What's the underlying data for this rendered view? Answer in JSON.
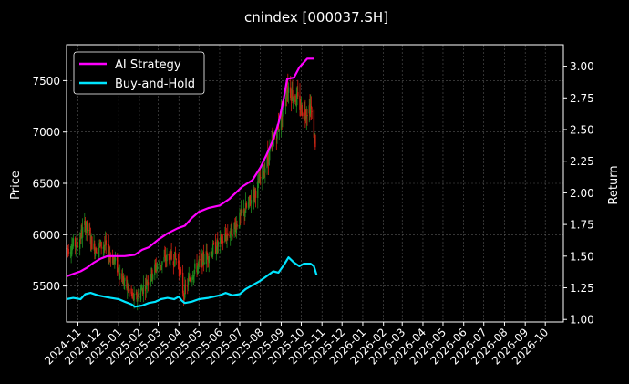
{
  "chart_data": {
    "type": "line",
    "title": "cnindex [000037.SH]",
    "ylabel_left": "Price",
    "ylabel_right": "Return",
    "x_ticks": [
      "2024-11",
      "2024-12",
      "2025-01",
      "2025-02",
      "2025-03",
      "2025-04",
      "2025-05",
      "2025-06",
      "2025-07",
      "2025-08",
      "2025-09",
      "2025-10",
      "2025-11",
      "2025-12",
      "2026-01",
      "2026-02",
      "2026-03",
      "2026-04",
      "2026-05",
      "2026-06",
      "2026-07",
      "2026-08",
      "2026-09",
      "2026-10"
    ],
    "x_range": [
      "2024-10-15",
      "2026-10-28"
    ],
    "y_left_ticks": [
      5500,
      6000,
      6500,
      7000,
      7500
    ],
    "y_left_range": [
      5150,
      7850
    ],
    "y_right_ticks": [
      1.0,
      1.25,
      1.5,
      1.75,
      2.0,
      2.25,
      2.5,
      2.75,
      3.0
    ],
    "y_right_range": [
      0.98,
      3.17
    ],
    "grid": true,
    "legend_position": "top-left",
    "candle_colors": {
      "up": "#1e8a1e",
      "down": "#d21e12"
    },
    "series": [
      {
        "name": "AI Strategy",
        "color": "#ff00ff",
        "axis": "right",
        "points": [
          [
            "2024-10-15",
            1.34
          ],
          [
            "2024-10-25",
            1.36
          ],
          [
            "2024-11-05",
            1.38
          ],
          [
            "2024-11-15",
            1.41
          ],
          [
            "2024-11-25",
            1.45
          ],
          [
            "2024-12-05",
            1.48
          ],
          [
            "2024-12-15",
            1.5
          ],
          [
            "2024-12-25",
            1.5
          ],
          [
            "2025-01-10",
            1.5
          ],
          [
            "2025-01-25",
            1.51
          ],
          [
            "2025-02-05",
            1.55
          ],
          [
            "2025-02-15",
            1.57
          ],
          [
            "2025-03-01",
            1.63
          ],
          [
            "2025-03-15",
            1.68
          ],
          [
            "2025-03-30",
            1.72
          ],
          [
            "2025-04-10",
            1.74
          ],
          [
            "2025-04-20",
            1.8
          ],
          [
            "2025-05-01",
            1.85
          ],
          [
            "2025-05-15",
            1.88
          ],
          [
            "2025-06-01",
            1.9
          ],
          [
            "2025-06-15",
            1.95
          ],
          [
            "2025-06-25",
            2.0
          ],
          [
            "2025-07-05",
            2.05
          ],
          [
            "2025-07-20",
            2.1
          ],
          [
            "2025-08-01",
            2.2
          ],
          [
            "2025-08-10",
            2.3
          ],
          [
            "2025-08-20",
            2.42
          ],
          [
            "2025-08-28",
            2.55
          ],
          [
            "2025-09-05",
            2.75
          ],
          [
            "2025-09-10",
            2.9
          ],
          [
            "2025-09-20",
            2.91
          ],
          [
            "2025-09-28",
            2.99
          ],
          [
            "2025-10-10",
            3.06
          ],
          [
            "2025-10-20",
            3.06
          ]
        ]
      },
      {
        "name": "Buy-and-Hold",
        "color": "#00e5ff",
        "axis": "right",
        "points": [
          [
            "2024-10-15",
            1.16
          ],
          [
            "2024-10-25",
            1.17
          ],
          [
            "2024-11-05",
            1.16
          ],
          [
            "2024-11-12",
            1.2
          ],
          [
            "2024-11-20",
            1.21
          ],
          [
            "2024-12-01",
            1.19
          ],
          [
            "2024-12-10",
            1.18
          ],
          [
            "2024-12-20",
            1.17
          ],
          [
            "2025-01-01",
            1.16
          ],
          [
            "2025-01-10",
            1.14
          ],
          [
            "2025-01-20",
            1.12
          ],
          [
            "2025-01-25",
            1.1
          ],
          [
            "2025-02-05",
            1.11
          ],
          [
            "2025-02-15",
            1.13
          ],
          [
            "2025-02-25",
            1.14
          ],
          [
            "2025-03-05",
            1.16
          ],
          [
            "2025-03-15",
            1.17
          ],
          [
            "2025-03-25",
            1.16
          ],
          [
            "2025-04-01",
            1.18
          ],
          [
            "2025-04-05",
            1.15
          ],
          [
            "2025-04-10",
            1.13
          ],
          [
            "2025-04-20",
            1.14
          ],
          [
            "2025-05-01",
            1.16
          ],
          [
            "2025-05-15",
            1.17
          ],
          [
            "2025-06-01",
            1.19
          ],
          [
            "2025-06-10",
            1.21
          ],
          [
            "2025-06-20",
            1.19
          ],
          [
            "2025-07-01",
            1.2
          ],
          [
            "2025-07-10",
            1.24
          ],
          [
            "2025-07-20",
            1.27
          ],
          [
            "2025-07-30",
            1.3
          ],
          [
            "2025-08-10",
            1.34
          ],
          [
            "2025-08-20",
            1.38
          ],
          [
            "2025-08-28",
            1.37
          ],
          [
            "2025-09-05",
            1.43
          ],
          [
            "2025-09-12",
            1.49
          ],
          [
            "2025-09-20",
            1.45
          ],
          [
            "2025-09-28",
            1.42
          ],
          [
            "2025-10-05",
            1.44
          ],
          [
            "2025-10-15",
            1.44
          ],
          [
            "2025-10-20",
            1.42
          ],
          [
            "2025-10-24",
            1.35
          ]
        ]
      }
    ],
    "price_path": [
      [
        "2024-10-15",
        5860
      ],
      [
        "2024-11-01",
        5920
      ],
      [
        "2024-11-12",
        6100
      ],
      [
        "2024-11-25",
        5870
      ],
      [
        "2024-12-10",
        5900
      ],
      [
        "2024-12-25",
        5750
      ],
      [
        "2025-01-10",
        5520
      ],
      [
        "2025-01-25",
        5360
      ],
      [
        "2025-02-10",
        5520
      ],
      [
        "2025-02-25",
        5680
      ],
      [
        "2025-03-15",
        5780
      ],
      [
        "2025-03-30",
        5760
      ],
      [
        "2025-04-08",
        5420
      ],
      [
        "2025-04-20",
        5620
      ],
      [
        "2025-05-10",
        5780
      ],
      [
        "2025-05-30",
        5900
      ],
      [
        "2025-06-20",
        6050
      ],
      [
        "2025-07-01",
        6150
      ],
      [
        "2025-07-15",
        6300
      ],
      [
        "2025-07-30",
        6500
      ],
      [
        "2025-08-15",
        6800
      ],
      [
        "2025-08-30",
        7100
      ],
      [
        "2025-09-10",
        7450
      ],
      [
        "2025-09-25",
        7300
      ],
      [
        "2025-10-05",
        7200
      ],
      [
        "2025-10-15",
        7250
      ],
      [
        "2025-10-22",
        6900
      ]
    ]
  }
}
